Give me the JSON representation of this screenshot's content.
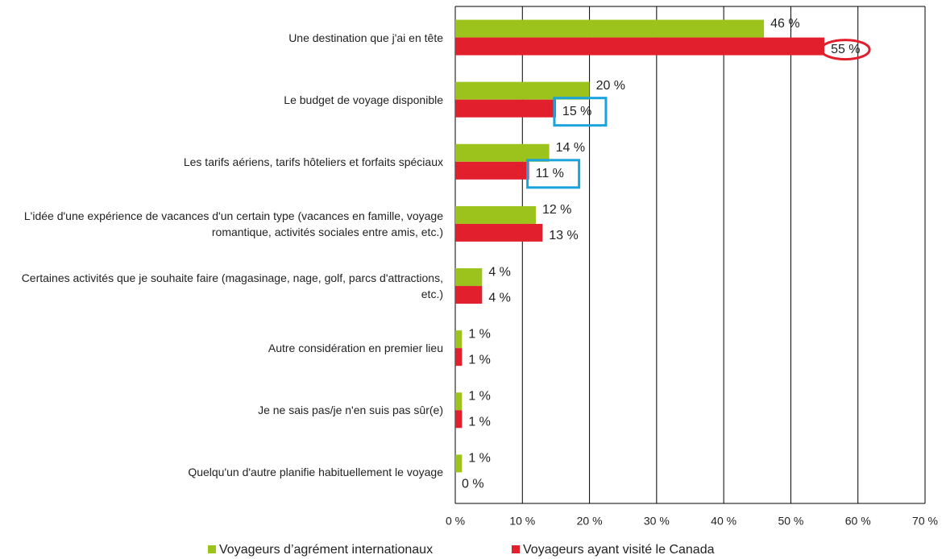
{
  "chart_data": {
    "type": "barh",
    "categories": [
      "Une destination que j'ai en tête",
      "Le budget de voyage disponible",
      "Les tarifs aériens, tarifs hôteliers et forfaits spéciaux",
      "L'idée d'une expérience de vacances d'un certain type (vacances en famille, voyage romantique, activités sociales entre amis, etc.)",
      "Certaines activités que je souhaite faire (magasinage, nage, golf, parcs d'attractions, etc.)",
      "Autre considération en premier lieu",
      "Je ne sais pas/je n'en suis pas sûr(e)",
      "Quelqu'un d'autre planifie habituellement le voyage"
    ],
    "series": [
      {
        "name": "Voyageurs d’agrément internationaux",
        "color": "#9bc31c",
        "values": [
          46,
          20,
          14,
          12,
          4,
          1,
          1,
          1
        ],
        "value_labels": [
          "46 %",
          "20 %",
          "14 %",
          "12 %",
          "4 %",
          "1 %",
          "1 %",
          "1 %"
        ]
      },
      {
        "name": "Voyageurs ayant visité le Canada",
        "color": "#e21f2d",
        "values": [
          55,
          15,
          11,
          13,
          4,
          1,
          1,
          0
        ],
        "value_labels": [
          "55 %",
          "15 %",
          "11 %",
          "13 %",
          "4 %",
          "1 %",
          "1 %",
          "0 %"
        ]
      }
    ],
    "xlim": [
      0,
      70
    ],
    "xticks": [
      {
        "value": 0,
        "label": "0 %"
      },
      {
        "value": 10,
        "label": "10 %"
      },
      {
        "value": 20,
        "label": "20 %"
      },
      {
        "value": 30,
        "label": "30 %"
      },
      {
        "value": 40,
        "label": "40 %"
      },
      {
        "value": 50,
        "label": "50 %"
      },
      {
        "value": 60,
        "label": "60 %"
      },
      {
        "value": 70,
        "label": "70 %"
      }
    ],
    "grid": true
  }
}
